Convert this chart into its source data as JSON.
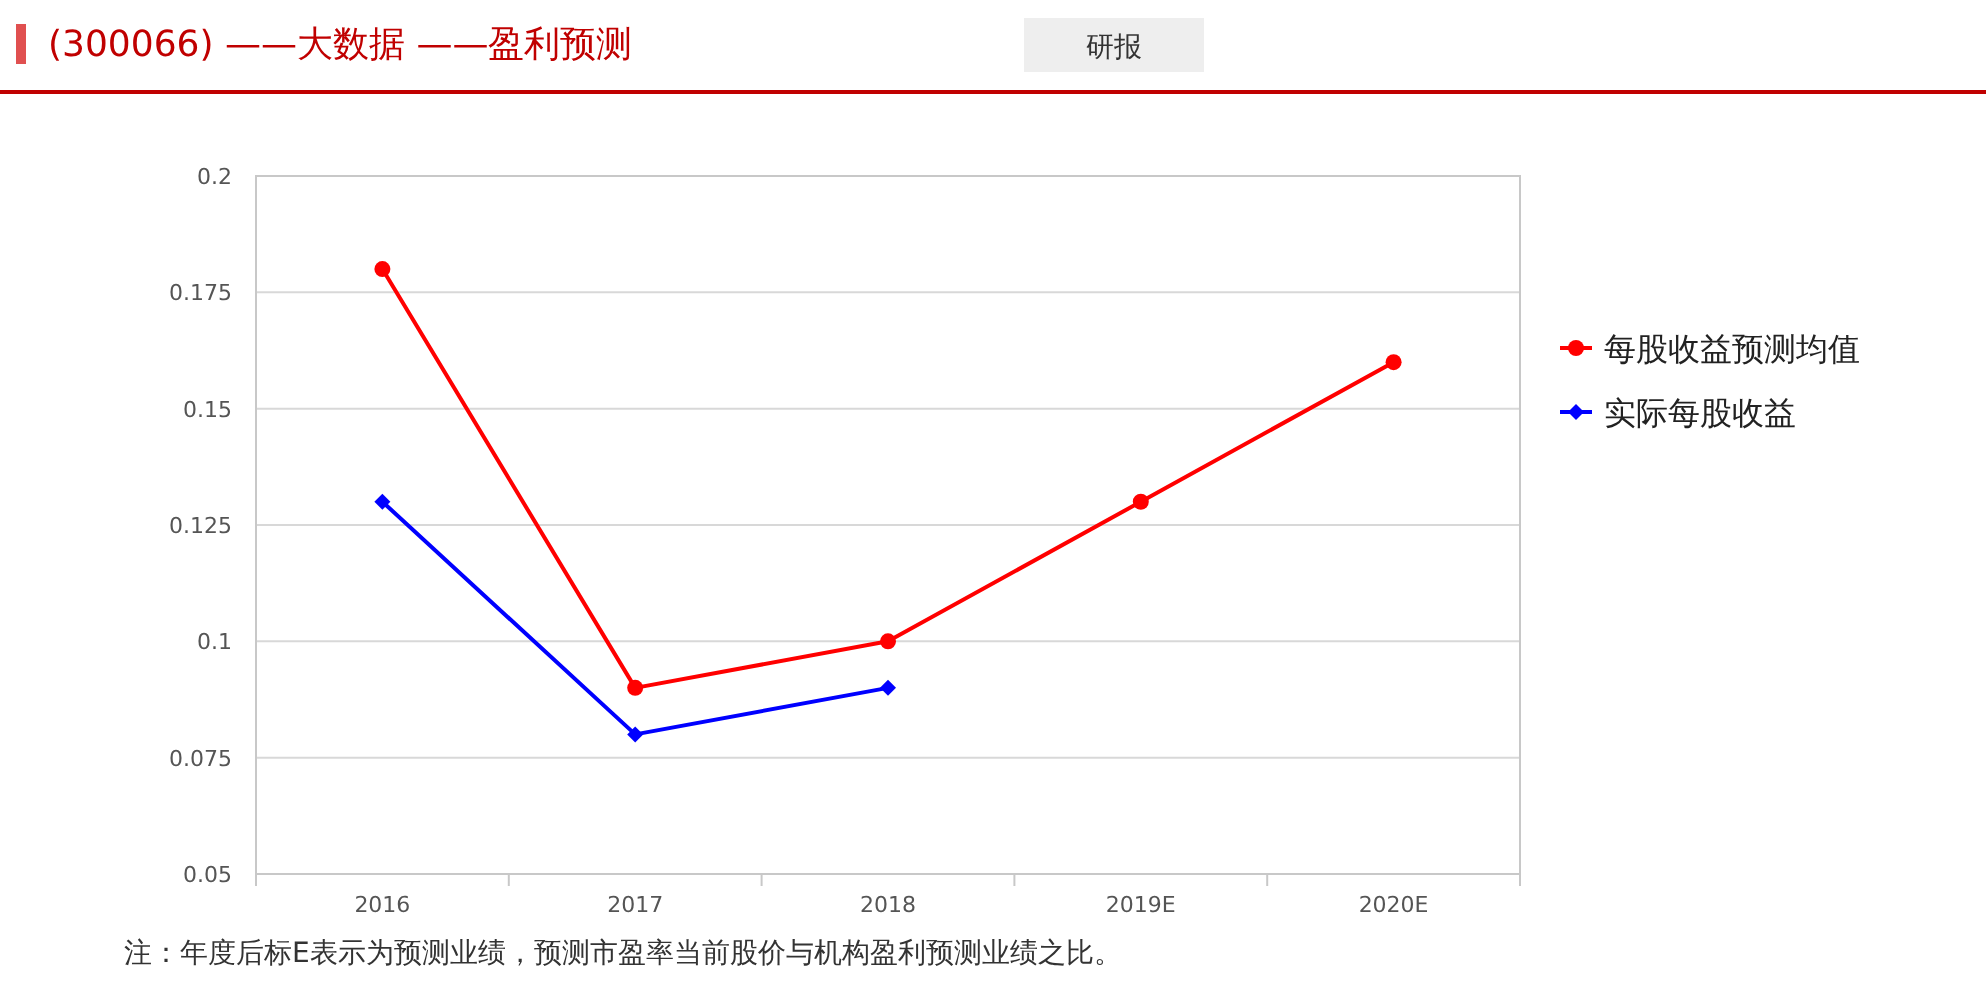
{
  "chart_data": {
    "type": "line",
    "title": "(300066) ——大数据 ——盈利预测",
    "categories": [
      "2016",
      "2017",
      "2018",
      "2019E",
      "2020E"
    ],
    "series": [
      {
        "name": "每股收益预测均值",
        "color": "#ff0000",
        "marker": "circle",
        "values": [
          0.18,
          0.09,
          0.1,
          0.13,
          0.16
        ]
      },
      {
        "name": "实际每股收益",
        "color": "#0000ff",
        "marker": "diamond",
        "values": [
          0.13,
          0.08,
          0.09,
          null,
          null
        ]
      }
    ],
    "ylim": [
      0.05,
      0.2
    ],
    "yticks": [
      0.05,
      0.075,
      0.1,
      0.125,
      0.15,
      0.175,
      0.2
    ],
    "grid": "y",
    "legend": "right",
    "annotations": [
      "研报",
      "注：年度后标E表示为预测业绩，预测市盈率当前股价与机构盈利预测业绩之比。"
    ]
  }
}
